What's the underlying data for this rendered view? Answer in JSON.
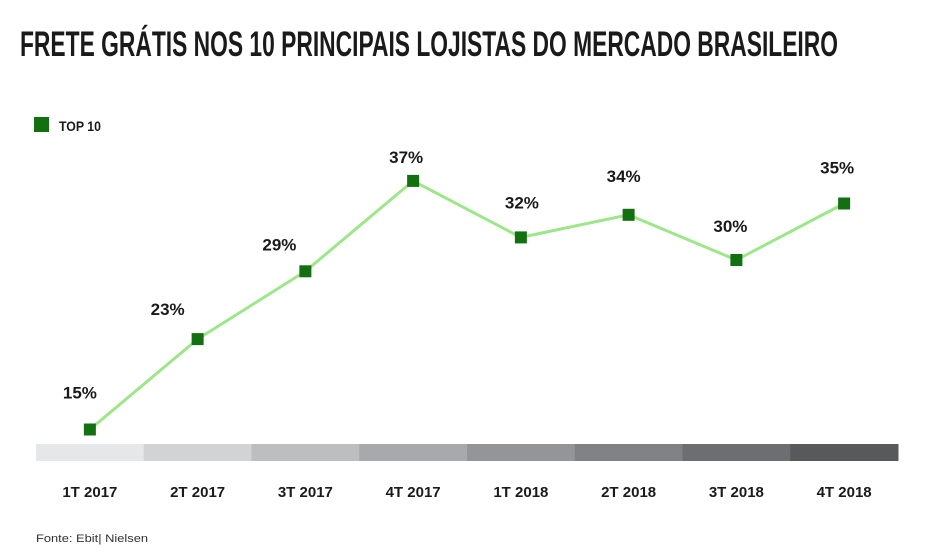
{
  "chart_data": {
    "type": "line",
    "title": "FRETE GRÁTIS NOS 10 PRINCIPAIS LOJISTAS DO MERCADO BRASILEIRO",
    "categories": [
      "1T 2017",
      "2T 2017",
      "3T 2017",
      "4T 2017",
      "1T 2018",
      "2T 2018",
      "3T 2018",
      "4T 2018"
    ],
    "series": [
      {
        "name": "TOP 10",
        "values": [
          15,
          23,
          29,
          37,
          32,
          34,
          30,
          35
        ],
        "labels": [
          "15%",
          "23%",
          "29%",
          "37%",
          "32%",
          "34%",
          "30%",
          "35%"
        ]
      }
    ],
    "ylim": [
      0,
      40
    ],
    "grid": false,
    "legend_position": "top-left",
    "colors": {
      "marker": "#137010",
      "line": "#9ee68a",
      "band": [
        "#e6e7e8",
        "#d1d3d4",
        "#bcbec0",
        "#a7a9ac",
        "#939598",
        "#808285",
        "#6d6e71",
        "#58595b"
      ]
    },
    "source": "Fonte: Ebit| Nielsen"
  }
}
